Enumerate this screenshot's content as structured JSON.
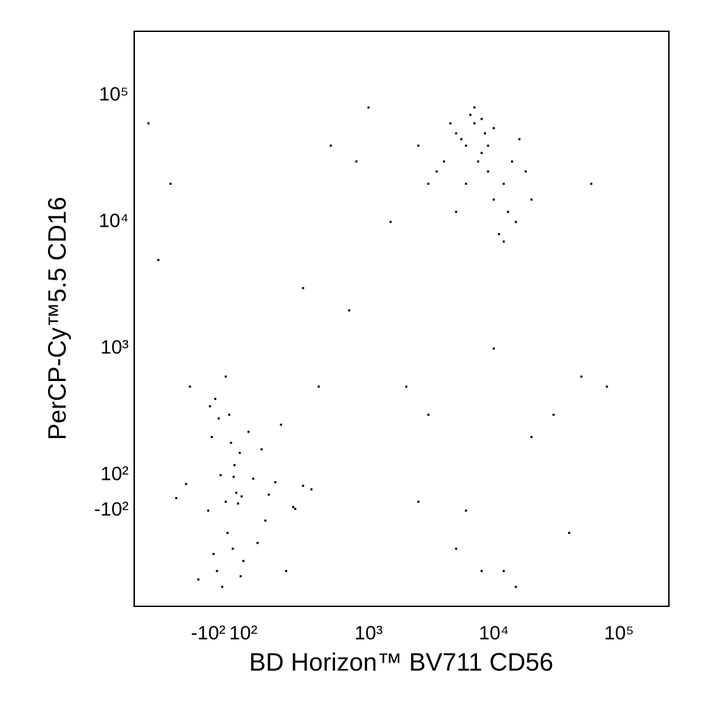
{
  "chart_data": {
    "type": "scatter",
    "xlabel": "BD Horizon™ BV711 CD56",
    "ylabel": "PerCP-Cy™5.5 CD16",
    "xscale": "biexponential",
    "yscale": "biexponential",
    "color": "#000000",
    "xlim": [
      -390,
      250000
    ],
    "ylim": [
      -570,
      320000
    ],
    "xticks": [
      {
        "value": -100,
        "label": "-10²"
      },
      {
        "value": 100,
        "label": "10²"
      },
      {
        "value": 1000,
        "label": "10³"
      },
      {
        "value": 10000,
        "label": "10⁴"
      },
      {
        "value": 100000,
        "label": "10⁵"
      }
    ],
    "yticks": [
      {
        "value": -100,
        "label": "-10²"
      },
      {
        "value": 100,
        "label": "10²"
      },
      {
        "value": 1000,
        "label": "10³"
      },
      {
        "value": 10000,
        "label": "10⁴"
      },
      {
        "value": 100000,
        "label": "10⁵"
      }
    ],
    "x": [
      -150,
      -100,
      -80,
      -50,
      -30,
      0,
      20,
      40,
      60,
      80,
      100,
      120,
      150,
      200,
      250,
      300,
      -120,
      -60,
      10,
      50,
      90,
      130,
      180,
      220,
      -90,
      -20,
      30,
      70,
      110,
      160,
      -140,
      -70,
      0,
      45,
      85,
      140,
      260,
      350,
      -180,
      -40,
      3000,
      4000,
      5000,
      6000,
      7000,
      8000,
      9000,
      10000,
      12000,
      15000,
      4500,
      5500,
      6500,
      7500,
      8500,
      11000,
      13000,
      18000,
      2500,
      20000,
      6000,
      7000,
      9000,
      10000,
      5000,
      8000,
      14000,
      3500,
      16000,
      12000,
      -300,
      -200,
      500,
      800,
      2000,
      300,
      1000,
      3000,
      5000,
      8000,
      20000,
      40000,
      60000,
      10000,
      15000,
      30000,
      700,
      1500,
      400,
      6000,
      50000,
      80000,
      -250,
      2500,
      12000
    ],
    "y": [
      50,
      -100,
      200,
      -300,
      100,
      -50,
      300,
      -200,
      0,
      150,
      -250,
      80,
      -120,
      250,
      -80,
      40,
      -350,
      400,
      -150,
      120,
      -20,
      -180,
      60,
      -300,
      350,
      -400,
      180,
      -60,
      220,
      -10,
      500,
      -220,
      600,
      90,
      -330,
      160,
      -90,
      20,
      -30,
      280,
      20000,
      30000,
      50000,
      40000,
      60000,
      35000,
      25000,
      15000,
      20000,
      10000,
      60000,
      45000,
      70000,
      30000,
      50000,
      8000,
      12000,
      25000,
      40000,
      15000,
      20000,
      80000,
      40000,
      55000,
      12000,
      65000,
      30000,
      25000,
      45000,
      7000,
      60000,
      20000,
      40000,
      30000,
      500,
      3000,
      80000,
      300,
      -200,
      -300,
      200,
      -150,
      20000,
      1000,
      -400,
      300,
      2000,
      10000,
      500,
      -100,
      600,
      500,
      5000,
      -50,
      -300
    ]
  }
}
